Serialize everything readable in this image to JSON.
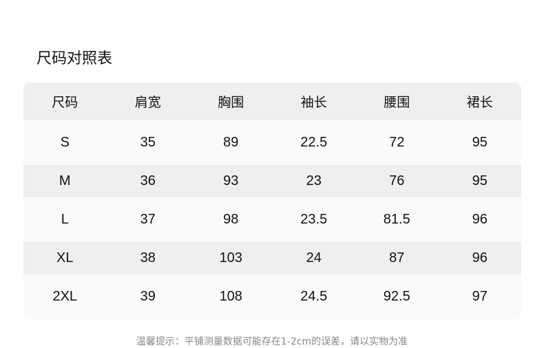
{
  "title": "尺码对照表",
  "table": {
    "headers": [
      "尺码",
      "肩宽",
      "胸围",
      "袖长",
      "腰围",
      "裙长"
    ],
    "rows": [
      [
        "S",
        "35",
        "89",
        "22.5",
        "72",
        "95"
      ],
      [
        "M",
        "36",
        "93",
        "23",
        "76",
        "95"
      ],
      [
        "L",
        "37",
        "98",
        "23.5",
        "81.5",
        "96"
      ],
      [
        "XL",
        "38",
        "103",
        "24",
        "87",
        "96"
      ],
      [
        "2XL",
        "39",
        "108",
        "24.5",
        "92.5",
        "97"
      ]
    ]
  },
  "note": "温馨提示：平铺测量数据可能存在1-2cm的误差，请以实物为准",
  "colors": {
    "header_bg": "#efefef",
    "row_light": "#fafafa",
    "row_grey": "#efefef",
    "note_text": "#888888"
  }
}
